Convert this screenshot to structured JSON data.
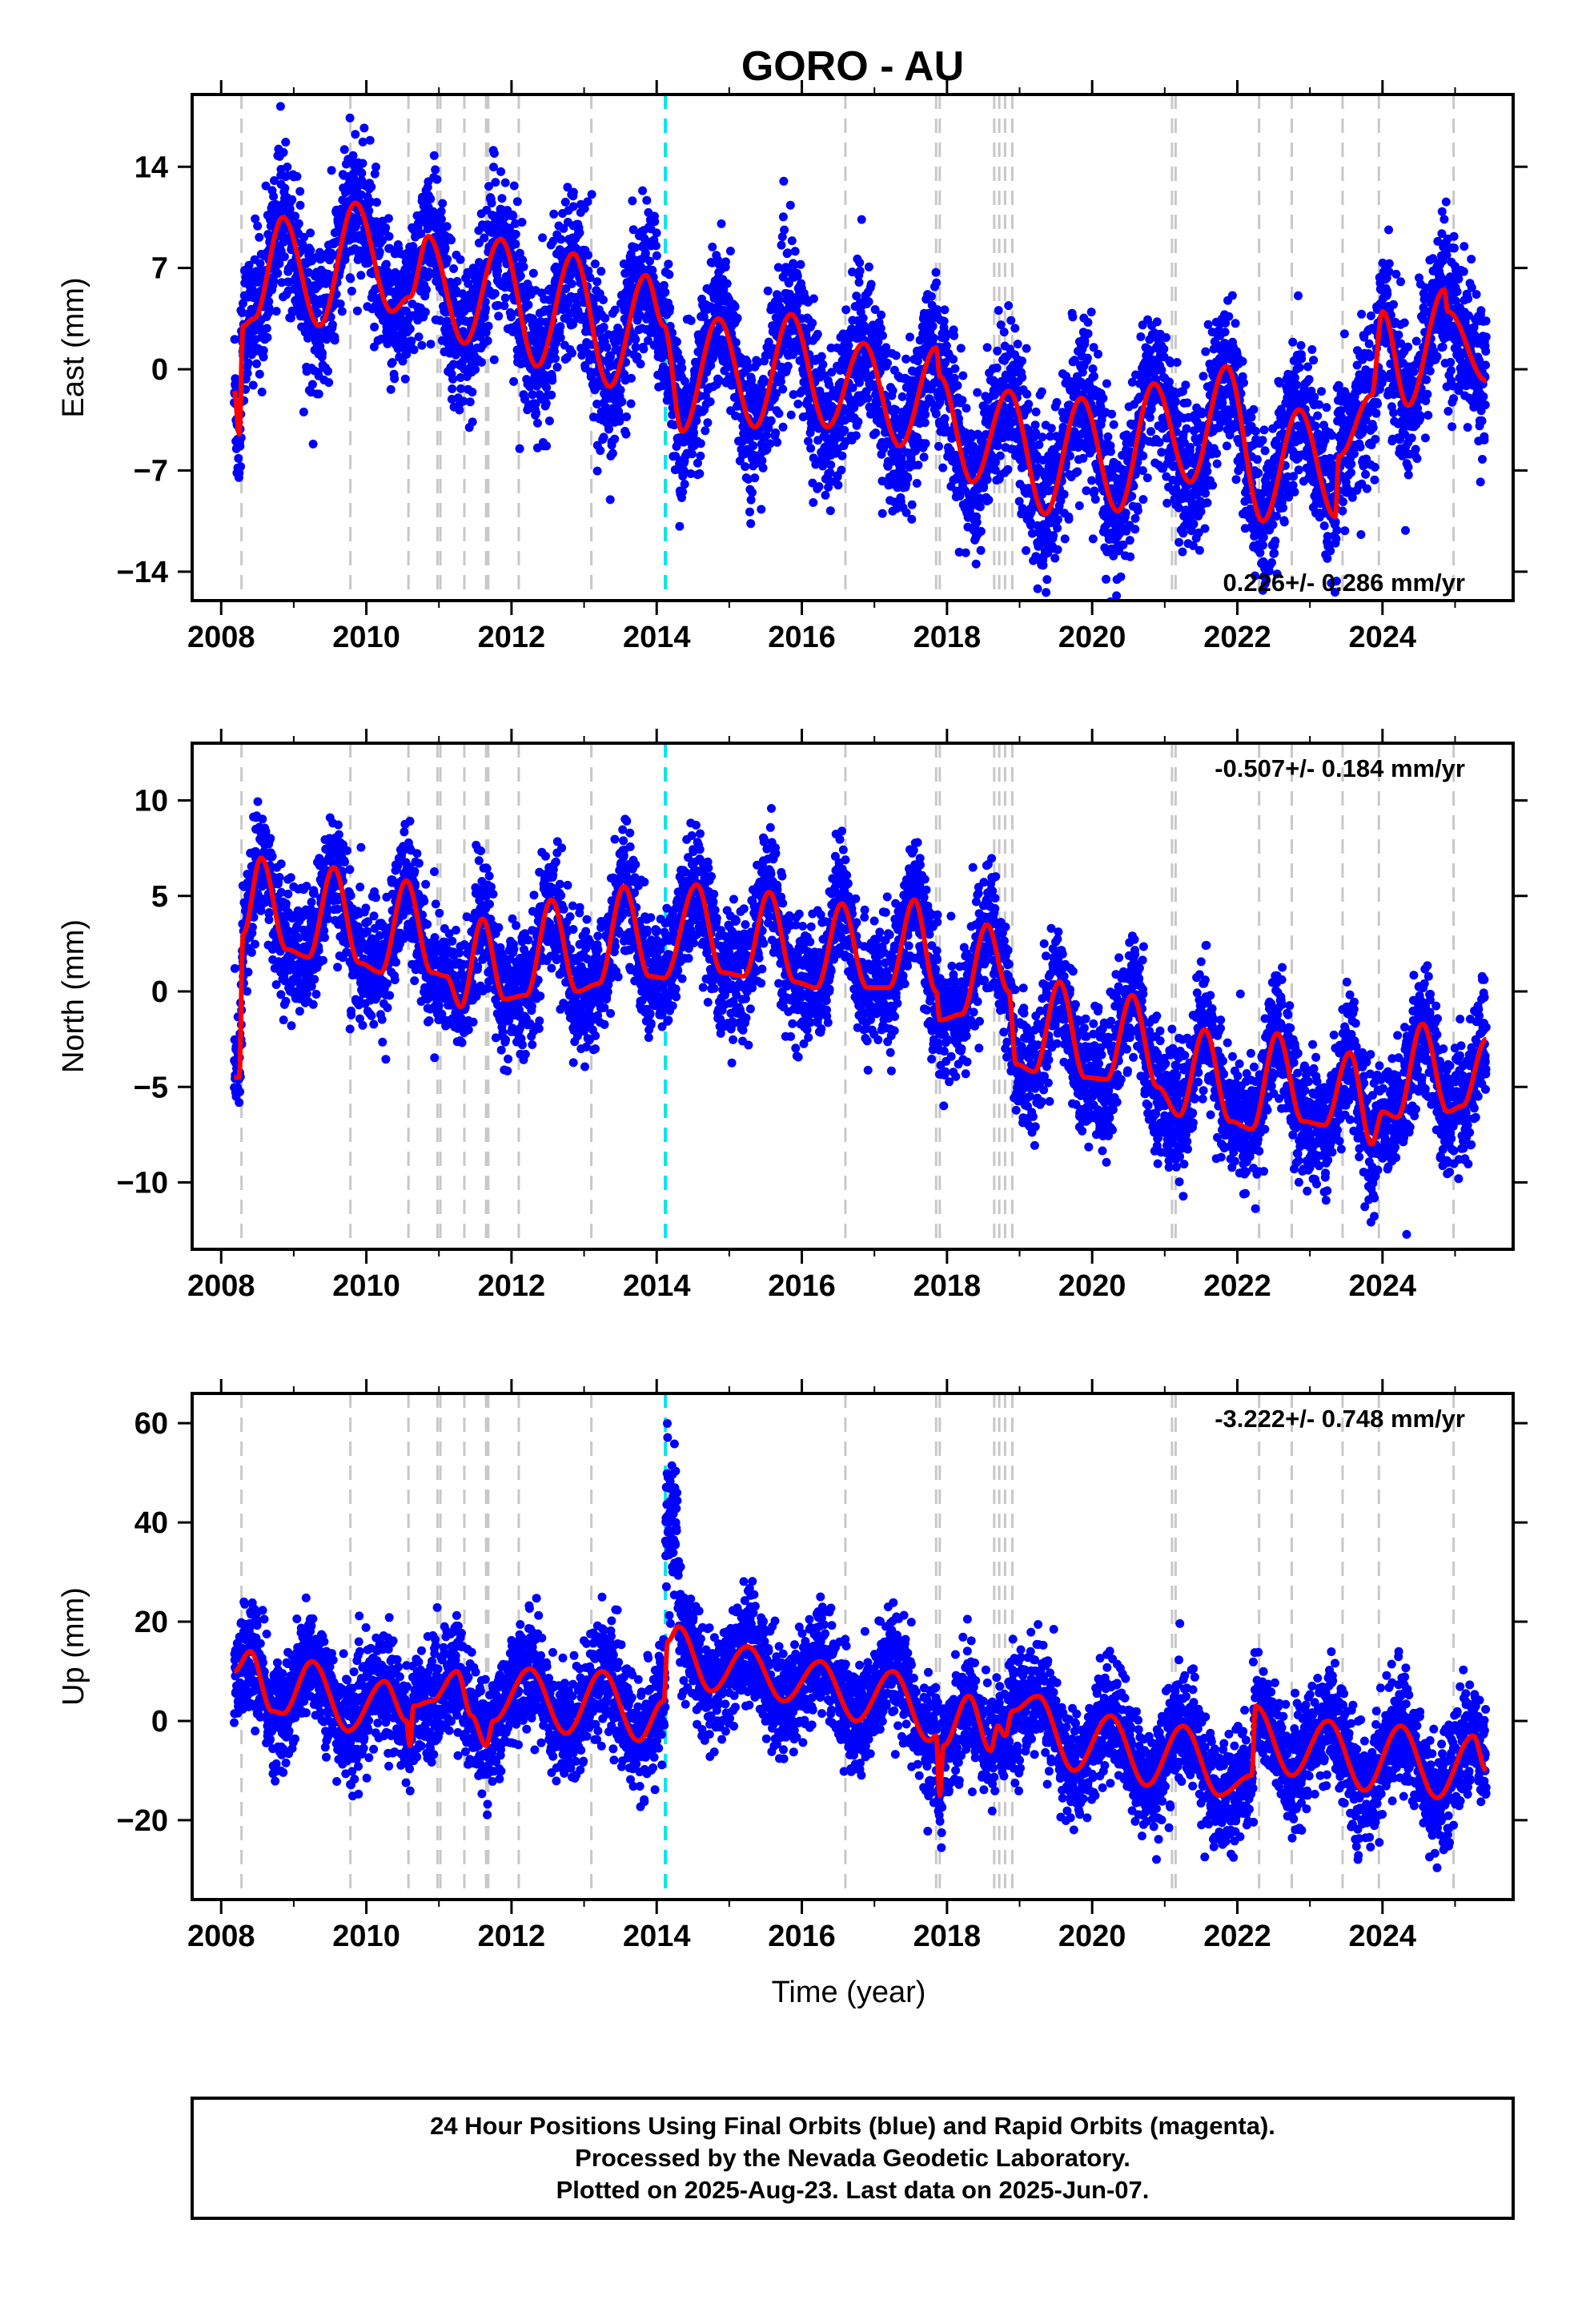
{
  "title": "GORO - AU",
  "x_axis_label": "Time (year)",
  "footer": {
    "line1": "24 Hour Positions Using Final Orbits (blue) and Rapid Orbits (magenta).",
    "line2": "Processed by the Nevada Geodetic Laboratory.",
    "line3": "Plotted on 2025-Aug-23. Last data on 2025-Jun-07."
  },
  "colors": {
    "points": "#0000ff",
    "model": "#ff0000",
    "equipment_change": "#c8c8c8",
    "event": "#00e5ee",
    "frame": "#000000"
  },
  "chart_data": [
    {
      "type": "scatter",
      "component": "east",
      "ylabel": "East (mm)",
      "xlim": [
        2007.6,
        2025.8
      ],
      "ylim": [
        -16,
        19
      ],
      "xticks": [
        2008,
        2010,
        2012,
        2014,
        2016,
        2018,
        2020,
        2022,
        2024
      ],
      "xtick_labels": [
        "2008",
        "2010",
        "2012",
        "2014",
        "2016",
        "2018",
        "2020",
        "2022",
        "2024"
      ],
      "yticks": [
        -14,
        -7,
        0,
        7,
        14
      ],
      "ytick_labels": [
        "−14",
        "−7",
        "0",
        "7",
        "14"
      ],
      "rate": "0.226+/- 0.286 mm/yr",
      "rate_position": "bottom-right",
      "data_span": [
        2008.18,
        2025.43
      ],
      "model_points": [
        [
          2008.18,
          -1.5
        ],
        [
          2008.25,
          -4.5
        ],
        [
          2008.3,
          3.0
        ],
        [
          2008.45,
          3.5
        ],
        [
          2008.85,
          10.5
        ],
        [
          2009.35,
          3.0
        ],
        [
          2009.85,
          11.5
        ],
        [
          2010.35,
          4.0
        ],
        [
          2010.6,
          5.0
        ],
        [
          2010.85,
          9.2
        ],
        [
          2011.35,
          1.8
        ],
        [
          2011.85,
          9.0
        ],
        [
          2012.35,
          0.2
        ],
        [
          2012.85,
          8.0
        ],
        [
          2013.35,
          -1.2
        ],
        [
          2013.85,
          6.5
        ],
        [
          2014.1,
          3.0
        ],
        [
          2014.35,
          -4.3
        ],
        [
          2014.85,
          3.5
        ],
        [
          2015.35,
          -4.0
        ],
        [
          2015.85,
          3.8
        ],
        [
          2016.35,
          -4.0
        ],
        [
          2016.85,
          1.8
        ],
        [
          2017.35,
          -5.3
        ],
        [
          2017.85,
          1.5
        ],
        [
          2017.9,
          -0.5
        ],
        [
          2018.35,
          -7.8
        ],
        [
          2018.85,
          -1.5
        ],
        [
          2019.35,
          -10.0
        ],
        [
          2019.85,
          -2.0
        ],
        [
          2020.35,
          -9.8
        ],
        [
          2020.85,
          -1.0
        ],
        [
          2021.35,
          -7.8
        ],
        [
          2021.85,
          0.2
        ],
        [
          2022.35,
          -10.5
        ],
        [
          2022.85,
          -2.8
        ],
        [
          2023.35,
          -10.2
        ],
        [
          2023.4,
          -6.0
        ],
        [
          2023.85,
          -1.8
        ],
        [
          2024.0,
          4.0
        ],
        [
          2024.35,
          -2.5
        ],
        [
          2024.85,
          5.5
        ],
        [
          2024.9,
          4.0
        ],
        [
          2025.43,
          -0.8
        ]
      ],
      "scatter_spread_mm": 2.6
    },
    {
      "type": "scatter",
      "component": "north",
      "ylabel": "North (mm)",
      "xlim": [
        2007.6,
        2025.8
      ],
      "ylim": [
        -13.5,
        13
      ],
      "xticks": [
        2008,
        2010,
        2012,
        2014,
        2016,
        2018,
        2020,
        2022,
        2024
      ],
      "xtick_labels": [
        "2008",
        "2010",
        "2012",
        "2014",
        "2016",
        "2018",
        "2020",
        "2022",
        "2024"
      ],
      "yticks": [
        -10,
        -5,
        0,
        5,
        10
      ],
      "ytick_labels": [
        "−10",
        "−5",
        "0",
        "5",
        "10"
      ],
      "rate": "-0.507+/- 0.184 mm/yr",
      "rate_position": "top-right",
      "data_span": [
        2008.18,
        2025.43
      ],
      "model_points": [
        [
          2008.18,
          -4.5
        ],
        [
          2008.25,
          -4.5
        ],
        [
          2008.3,
          3.0
        ],
        [
          2008.55,
          7.0
        ],
        [
          2008.9,
          2.2
        ],
        [
          2009.2,
          1.8
        ],
        [
          2009.55,
          6.5
        ],
        [
          2009.9,
          1.5
        ],
        [
          2010.2,
          1.0
        ],
        [
          2010.55,
          5.8
        ],
        [
          2010.9,
          1.0
        ],
        [
          2011.1,
          0.8
        ],
        [
          2011.3,
          -0.8
        ],
        [
          2011.6,
          3.8
        ],
        [
          2011.9,
          -0.4
        ],
        [
          2012.2,
          -0.2
        ],
        [
          2012.55,
          4.8
        ],
        [
          2012.9,
          0.0
        ],
        [
          2013.2,
          0.4
        ],
        [
          2013.55,
          5.5
        ],
        [
          2013.9,
          0.8
        ],
        [
          2014.1,
          0.7
        ],
        [
          2014.55,
          5.6
        ],
        [
          2014.9,
          1.0
        ],
        [
          2015.2,
          0.8
        ],
        [
          2015.55,
          5.2
        ],
        [
          2015.9,
          0.5
        ],
        [
          2016.2,
          0.2
        ],
        [
          2016.55,
          4.6
        ],
        [
          2016.9,
          0.2
        ],
        [
          2017.2,
          0.2
        ],
        [
          2017.55,
          4.8
        ],
        [
          2017.85,
          0.0
        ],
        [
          2017.9,
          -1.5
        ],
        [
          2018.2,
          -1.2
        ],
        [
          2018.55,
          3.5
        ],
        [
          2018.85,
          0.0
        ],
        [
          2018.95,
          -3.8
        ],
        [
          2019.2,
          -4.2
        ],
        [
          2019.55,
          0.5
        ],
        [
          2019.9,
          -4.5
        ],
        [
          2020.2,
          -4.6
        ],
        [
          2020.55,
          -0.2
        ],
        [
          2020.9,
          -5.0
        ],
        [
          2021.2,
          -6.5
        ],
        [
          2021.55,
          -2.0
        ],
        [
          2021.9,
          -6.8
        ],
        [
          2022.2,
          -7.2
        ],
        [
          2022.55,
          -2.2
        ],
        [
          2022.9,
          -6.8
        ],
        [
          2023.2,
          -7.0
        ],
        [
          2023.55,
          -3.2
        ],
        [
          2023.85,
          -8.0
        ],
        [
          2024.0,
          -6.3
        ],
        [
          2024.2,
          -6.6
        ],
        [
          2024.55,
          -1.7
        ],
        [
          2024.9,
          -6.3
        ],
        [
          2025.1,
          -6.0
        ],
        [
          2025.43,
          -2.5
        ]
      ],
      "scatter_spread_mm": 1.6
    },
    {
      "type": "scatter",
      "component": "up",
      "ylabel": "Up (mm)",
      "xlim": [
        2007.6,
        2025.8
      ],
      "ylim": [
        -36,
        66
      ],
      "xticks": [
        2008,
        2010,
        2012,
        2014,
        2016,
        2018,
        2020,
        2022,
        2024
      ],
      "xtick_labels": [
        "2008",
        "2010",
        "2012",
        "2014",
        "2016",
        "2018",
        "2020",
        "2022",
        "2024"
      ],
      "yticks": [
        -20,
        0,
        20,
        40,
        60
      ],
      "ytick_labels": [
        "−20",
        "0",
        "20",
        "40",
        "60"
      ],
      "rate": "-3.222+/- 0.748 mm/yr",
      "rate_position": "top-right",
      "data_span": [
        2008.18,
        2025.43
      ],
      "model_points": [
        [
          2008.18,
          10.0
        ],
        [
          2008.4,
          14.0
        ],
        [
          2008.7,
          2.0
        ],
        [
          2008.85,
          1.5
        ],
        [
          2009.25,
          12.0
        ],
        [
          2009.75,
          -2.0
        ],
        [
          2010.25,
          8.0
        ],
        [
          2010.55,
          0.0
        ],
        [
          2010.6,
          -5.0
        ],
        [
          2010.65,
          3.0
        ],
        [
          2010.9,
          4.0
        ],
        [
          2011.25,
          10.0
        ],
        [
          2011.45,
          1.0
        ],
        [
          2011.65,
          -5.0
        ],
        [
          2011.75,
          0.0
        ],
        [
          2012.25,
          10.5
        ],
        [
          2012.75,
          -2.5
        ],
        [
          2013.25,
          10.0
        ],
        [
          2013.75,
          -4.0
        ],
        [
          2014.1,
          4.0
        ],
        [
          2014.15,
          16.0
        ],
        [
          2014.3,
          19.0
        ],
        [
          2014.75,
          6.0
        ],
        [
          2015.25,
          15.0
        ],
        [
          2015.75,
          4.0
        ],
        [
          2016.25,
          12.0
        ],
        [
          2016.75,
          0.0
        ],
        [
          2017.25,
          10.0
        ],
        [
          2017.75,
          -4.0
        ],
        [
          2017.85,
          -3.0
        ],
        [
          2017.9,
          -15.0
        ],
        [
          2017.95,
          -5.0
        ],
        [
          2018.3,
          5.0
        ],
        [
          2018.6,
          -6.0
        ],
        [
          2018.7,
          -1.0
        ],
        [
          2018.8,
          -3.0
        ],
        [
          2018.9,
          2.0
        ],
        [
          2019.25,
          5.0
        ],
        [
          2019.75,
          -10.0
        ],
        [
          2020.25,
          1.0
        ],
        [
          2020.75,
          -13.0
        ],
        [
          2021.25,
          -1.0
        ],
        [
          2021.75,
          -15.0
        ],
        [
          2022.2,
          -11.0
        ],
        [
          2022.25,
          3.0
        ],
        [
          2022.75,
          -11.0
        ],
        [
          2023.25,
          0.0
        ],
        [
          2023.75,
          -14.0
        ],
        [
          2024.25,
          -1.0
        ],
        [
          2024.75,
          -15.5
        ],
        [
          2025.25,
          -3.0
        ],
        [
          2025.43,
          -10.0
        ]
      ],
      "scatter_spread_mm": 5.5,
      "spike": {
        "x0": 2014.12,
        "x1": 2014.3,
        "y_center": 40,
        "spread": 8
      }
    }
  ],
  "equipment_lines": [
    2008.28,
    2009.78,
    2010.58,
    2010.98,
    2011.02,
    2011.35,
    2011.65,
    2011.68,
    2012.1,
    2013.1,
    2016.6,
    2017.85,
    2017.9,
    2018.65,
    2018.72,
    2018.8,
    2018.9,
    2021.1,
    2021.15,
    2022.3,
    2022.75,
    2023.45,
    2023.95,
    2024.98
  ],
  "event_lines": [
    2014.12
  ]
}
